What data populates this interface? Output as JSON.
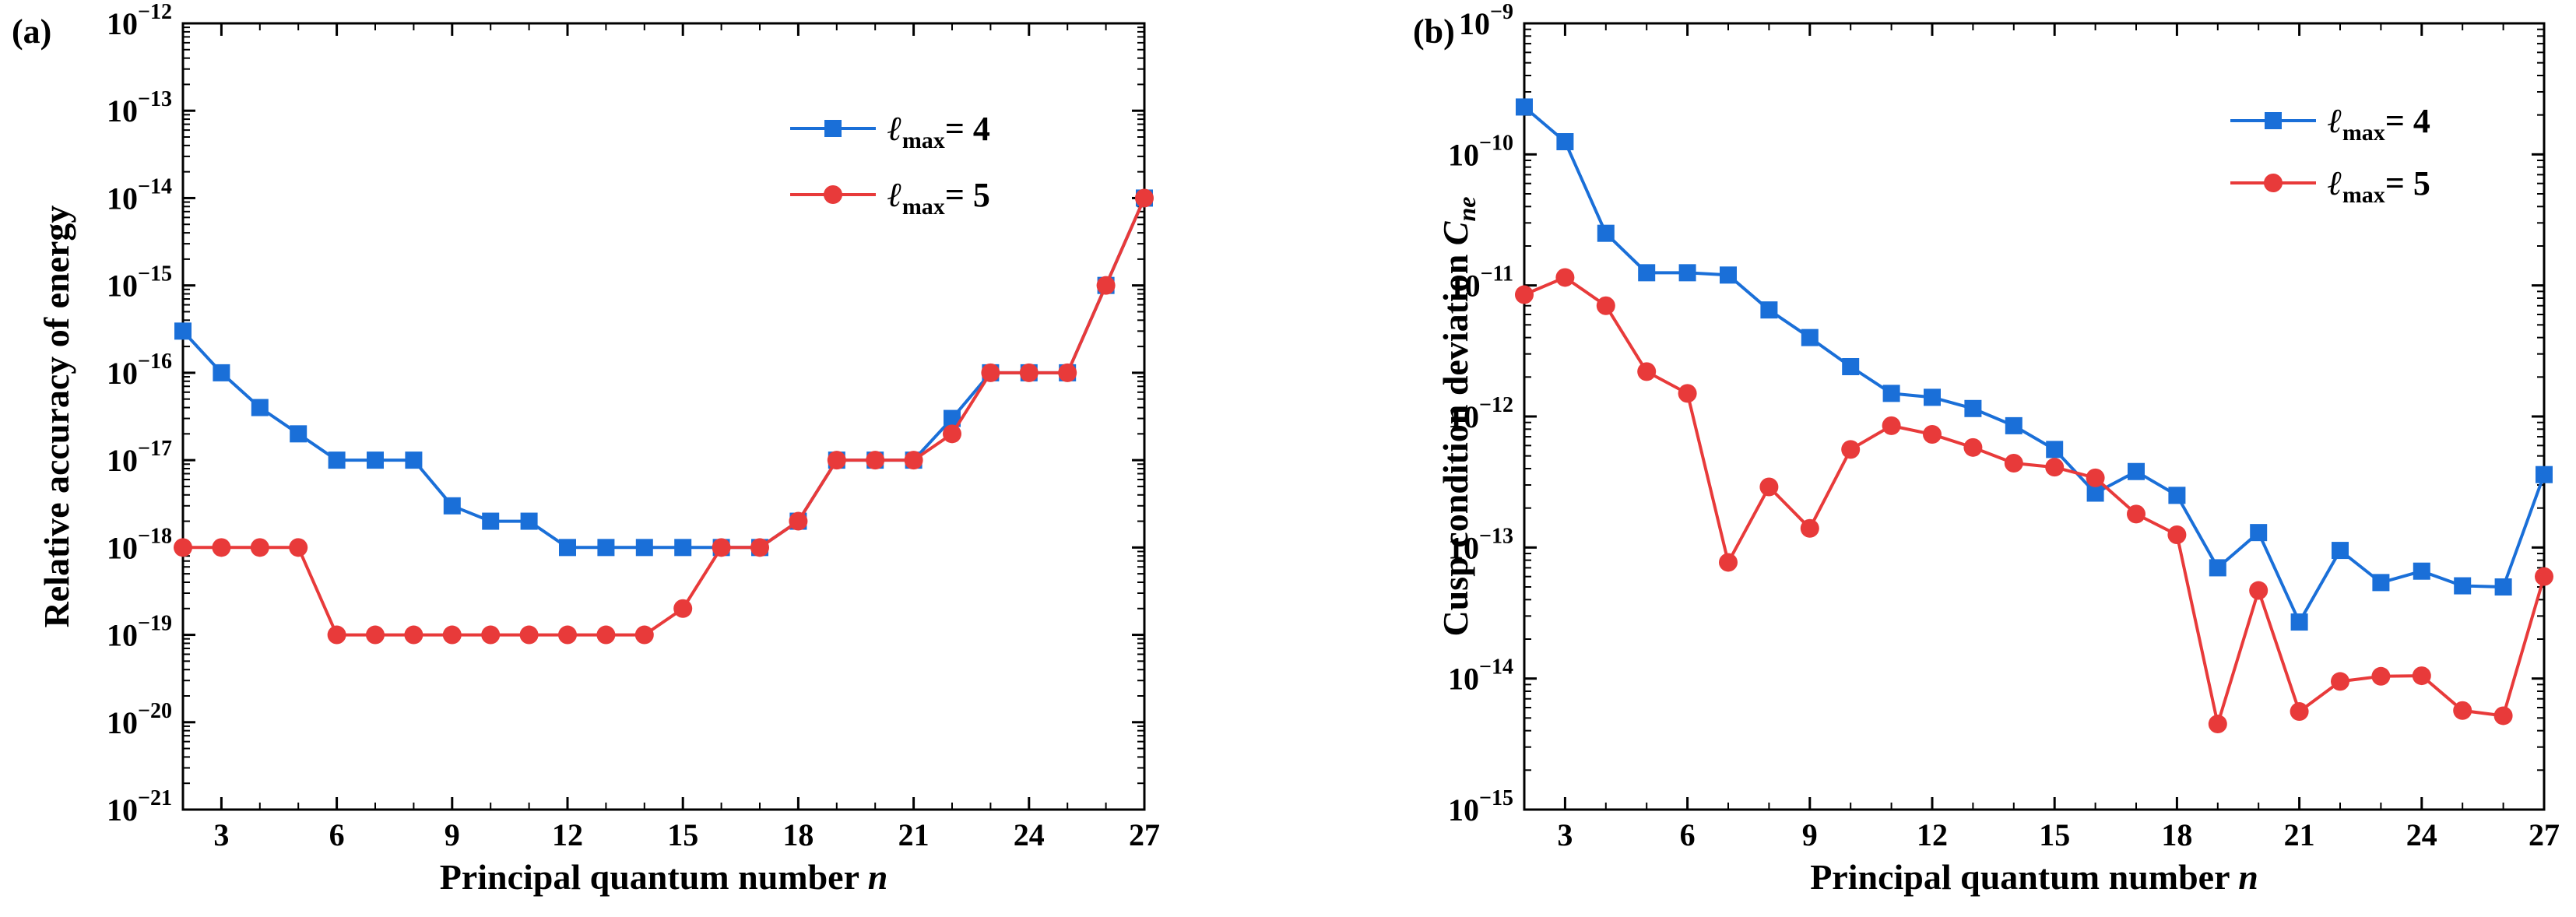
{
  "colors": {
    "blue": "#1a6fd8",
    "red": "#e83a3a"
  },
  "chart_data": [
    {
      "type": "line",
      "yscale": "log",
      "panel_label": "(a)",
      "title": "",
      "xlabel": "Principal quantum number ",
      "xlabel_italic": "n",
      "ylabel": "Relative accuracy of energy",
      "ylabel_italic": "",
      "xlim": [
        2,
        27
      ],
      "xticks": [
        3,
        6,
        9,
        12,
        15,
        18,
        21,
        24,
        27
      ],
      "xtick_labels": [
        "3",
        "6",
        "9",
        "12",
        "15",
        "18",
        "21",
        "24",
        "27"
      ],
      "ylim_exp": [
        -21,
        -12
      ],
      "ytick_labels": [
        "10",
        "10",
        "10",
        "10",
        "10",
        "10",
        "10",
        "10",
        "10",
        "10"
      ],
      "ytick_exponents": [
        "−21",
        "−20",
        "−19",
        "−18",
        "−17",
        "−16",
        "−15",
        "−14",
        "−13",
        "−12"
      ],
      "legend_position": "top-right",
      "x": [
        2,
        3,
        4,
        5,
        6,
        7,
        8,
        9,
        10,
        11,
        12,
        13,
        14,
        15,
        16,
        17,
        18,
        19,
        20,
        21,
        22,
        23,
        24,
        25,
        26,
        27
      ],
      "series": [
        {
          "name_prefix": "ℓ",
          "name_sub": "max",
          "name_suffix": "= 4",
          "marker": "square",
          "color": "#1a6fd8",
          "values": [
            3e-16,
            1e-16,
            4e-17,
            2e-17,
            1e-17,
            1e-17,
            1e-17,
            3e-18,
            2e-18,
            2e-18,
            1e-18,
            1e-18,
            1e-18,
            1e-18,
            1e-18,
            1e-18,
            2e-18,
            1e-17,
            1e-17,
            1e-17,
            3e-17,
            1e-16,
            1e-16,
            1e-16,
            1e-15,
            1e-14
          ]
        },
        {
          "name_prefix": "ℓ",
          "name_sub": "max",
          "name_suffix": "= 5",
          "marker": "circle",
          "color": "#e83a3a",
          "values": [
            1e-18,
            1e-18,
            1e-18,
            1e-18,
            1e-19,
            1e-19,
            1e-19,
            1e-19,
            1e-19,
            1e-19,
            1e-19,
            1e-19,
            1e-19,
            2e-19,
            1e-18,
            1e-18,
            2e-18,
            1e-17,
            1e-17,
            1e-17,
            2e-17,
            1e-16,
            1e-16,
            1e-16,
            1e-15,
            1e-14
          ]
        }
      ]
    },
    {
      "type": "line",
      "yscale": "log",
      "panel_label": "(b)",
      "title": "",
      "xlabel": "Principal quantum number ",
      "xlabel_italic": "n",
      "ylabel": "Cusp condition deviation ",
      "ylabel_italic": "C",
      "ylabel_italic_sub": "ne",
      "xlim": [
        2,
        27
      ],
      "xticks": [
        3,
        6,
        9,
        12,
        15,
        18,
        21,
        24,
        27
      ],
      "xtick_labels": [
        "3",
        "6",
        "9",
        "12",
        "15",
        "18",
        "21",
        "24",
        "27"
      ],
      "ylim_exp": [
        -15,
        -9
      ],
      "ytick_labels": [
        "10",
        "10",
        "10",
        "10",
        "10",
        "10",
        "10"
      ],
      "ytick_exponents": [
        "−15",
        "−14",
        "−13",
        "−12",
        "−11",
        "−10",
        "−9"
      ],
      "legend_position": "top-right",
      "x": [
        2,
        3,
        4,
        5,
        6,
        7,
        8,
        9,
        10,
        11,
        12,
        13,
        14,
        15,
        16,
        17,
        18,
        19,
        20,
        21,
        22,
        23,
        24,
        25,
        26,
        27
      ],
      "series": [
        {
          "name_prefix": "ℓ",
          "name_sub": "max",
          "name_suffix": "= 4",
          "marker": "square",
          "color": "#1a6fd8",
          "values": [
            2.3e-10,
            1.25e-10,
            2.5e-11,
            1.25e-11,
            1.25e-11,
            1.2e-11,
            6.5e-12,
            4e-12,
            2.4e-12,
            1.5e-12,
            1.4e-12,
            1.15e-12,
            8.5e-13,
            5.6e-13,
            2.6e-13,
            3.8e-13,
            2.5e-13,
            7e-14,
            1.3e-13,
            2.7e-14,
            9.5e-14,
            5.4e-14,
            6.6e-14,
            5.1e-14,
            5e-14,
            3.6e-13
          ]
        },
        {
          "name_prefix": "ℓ",
          "name_sub": "max",
          "name_suffix": "= 5",
          "marker": "circle",
          "color": "#e83a3a",
          "values": [
            8.5e-12,
            1.15e-11,
            7e-12,
            2.2e-12,
            1.5e-12,
            7.7e-14,
            2.9e-13,
            1.4e-13,
            5.6e-13,
            8.5e-13,
            7.3e-13,
            5.8e-13,
            4.4e-13,
            4.1e-13,
            3.4e-13,
            1.8e-13,
            1.25e-13,
            4.5e-15,
            4.7e-14,
            5.6e-15,
            9.5e-15,
            1.04e-14,
            1.05e-14,
            5.7e-15,
            5.2e-15,
            6e-14
          ]
        }
      ]
    }
  ]
}
